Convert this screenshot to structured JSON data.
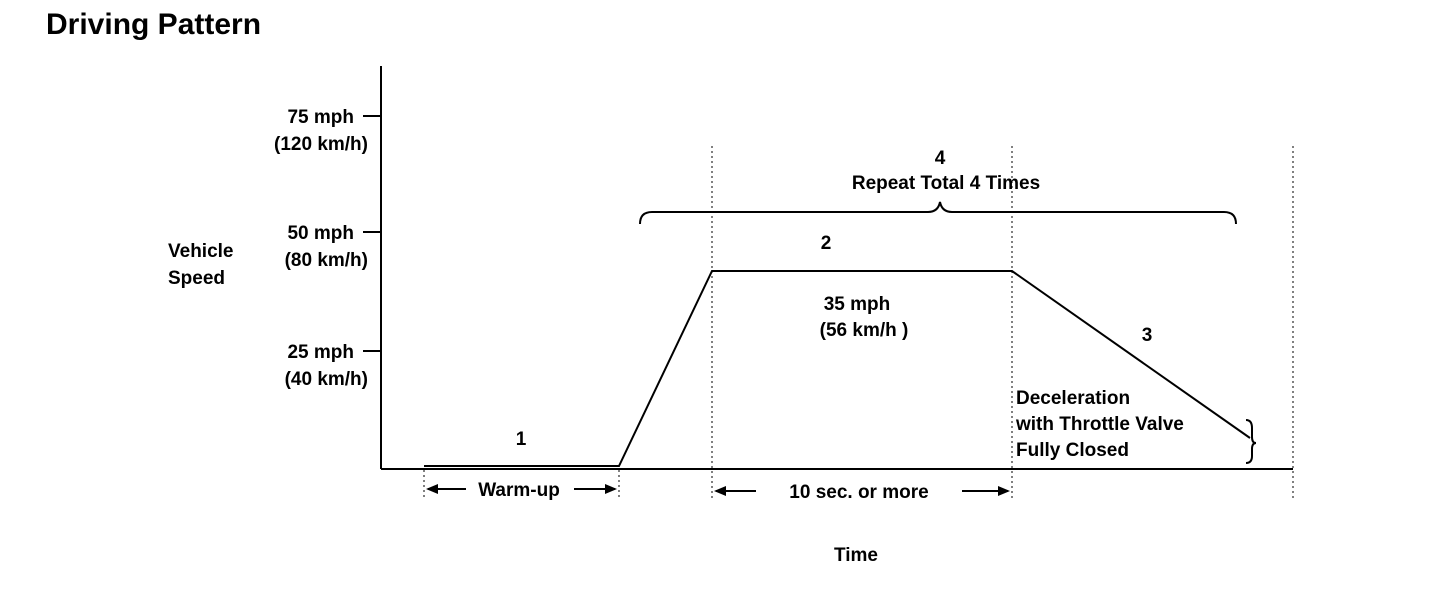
{
  "title": "Driving Pattern",
  "y_axis": {
    "label_line1": "Vehicle",
    "label_line2": "Speed",
    "ticks": [
      {
        "mph": "75 mph",
        "kmh": "(120 km/h)"
      },
      {
        "mph": "50 mph",
        "kmh": "(80 km/h)"
      },
      {
        "mph": "25 mph",
        "kmh": "(40 km/h)"
      }
    ]
  },
  "x_axis": {
    "label": "Time"
  },
  "steps": {
    "step1": "1",
    "step2": "2",
    "step3": "3",
    "step4_number": "4",
    "step4_text": "Repeat Total 4 Times"
  },
  "annotations": {
    "cruise_speed_mph": "35 mph",
    "cruise_speed_kmh": "(56 km/h )",
    "decel_line1": "Deceleration",
    "decel_line2": "with Throttle Valve",
    "decel_line3": "Fully Closed",
    "warmup": "Warm-up",
    "duration": "10 sec. or more"
  }
}
